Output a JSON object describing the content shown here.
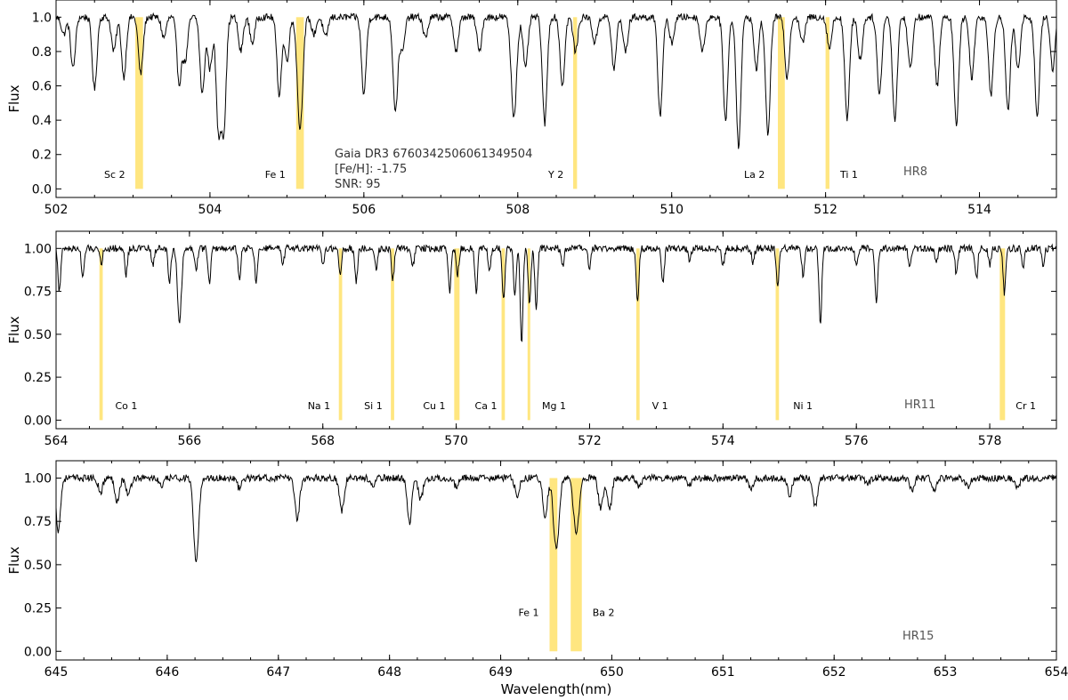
{
  "chart_data": [
    {
      "type": "line",
      "panel_label": "HR8",
      "xlim": [
        502,
        515
      ],
      "ylim": [
        -0.05,
        1.1
      ],
      "xticks": [
        502,
        504,
        506,
        508,
        510,
        512,
        514
      ],
      "yticks": [
        0.0,
        0.2,
        0.4,
        0.6,
        0.8,
        1.0
      ],
      "ytick_labels": [
        "0.0",
        "0.2",
        "0.4",
        "0.6",
        "0.8",
        "1.0"
      ],
      "ylabel": "Flux",
      "xlabel": "",
      "info": [
        "Gaia DR3 6760342506061349504",
        "[Fe/H]: -1.75",
        "SNR: 95"
      ],
      "absorption_lines": [
        {
          "x": 502.1,
          "depth": 0.1,
          "width": 0.03
        },
        {
          "x": 502.22,
          "depth": 0.3,
          "width": 0.03
        },
        {
          "x": 502.5,
          "depth": 0.42,
          "width": 0.03
        },
        {
          "x": 502.75,
          "depth": 0.2,
          "width": 0.03
        },
        {
          "x": 502.88,
          "depth": 0.35,
          "width": 0.03
        },
        {
          "x": 503.1,
          "depth": 0.33,
          "width": 0.03
        },
        {
          "x": 503.4,
          "depth": 0.12,
          "width": 0.03
        },
        {
          "x": 503.6,
          "depth": 0.38,
          "width": 0.03
        },
        {
          "x": 503.68,
          "depth": 0.25,
          "width": 0.03
        },
        {
          "x": 503.9,
          "depth": 0.45,
          "width": 0.03
        },
        {
          "x": 504.0,
          "depth": 0.3,
          "width": 0.03
        },
        {
          "x": 504.11,
          "depth": 0.65,
          "width": 0.03
        },
        {
          "x": 504.18,
          "depth": 0.64,
          "width": 0.03
        },
        {
          "x": 504.4,
          "depth": 0.2,
          "width": 0.03
        },
        {
          "x": 504.55,
          "depth": 0.15,
          "width": 0.03
        },
        {
          "x": 504.9,
          "depth": 0.45,
          "width": 0.03
        },
        {
          "x": 505.0,
          "depth": 0.25,
          "width": 0.03
        },
        {
          "x": 505.17,
          "depth": 0.65,
          "width": 0.035
        },
        {
          "x": 505.35,
          "depth": 0.1,
          "width": 0.03
        },
        {
          "x": 505.5,
          "depth": 0.12,
          "width": 0.03
        },
        {
          "x": 506.0,
          "depth": 0.45,
          "width": 0.03
        },
        {
          "x": 506.41,
          "depth": 0.55,
          "width": 0.03
        },
        {
          "x": 506.5,
          "depth": 0.2,
          "width": 0.03
        },
        {
          "x": 506.8,
          "depth": 0.12,
          "width": 0.03
        },
        {
          "x": 507.2,
          "depth": 0.2,
          "width": 0.03
        },
        {
          "x": 507.5,
          "depth": 0.2,
          "width": 0.03
        },
        {
          "x": 507.95,
          "depth": 0.58,
          "width": 0.035
        },
        {
          "x": 508.1,
          "depth": 0.3,
          "width": 0.03
        },
        {
          "x": 508.35,
          "depth": 0.62,
          "width": 0.03
        },
        {
          "x": 508.58,
          "depth": 0.4,
          "width": 0.03
        },
        {
          "x": 508.75,
          "depth": 0.2,
          "width": 0.03
        },
        {
          "x": 509.0,
          "depth": 0.15,
          "width": 0.03
        },
        {
          "x": 509.25,
          "depth": 0.3,
          "width": 0.03
        },
        {
          "x": 509.4,
          "depth": 0.2,
          "width": 0.03
        },
        {
          "x": 509.85,
          "depth": 0.57,
          "width": 0.03
        },
        {
          "x": 510.0,
          "depth": 0.15,
          "width": 0.03
        },
        {
          "x": 510.4,
          "depth": 0.2,
          "width": 0.03
        },
        {
          "x": 510.7,
          "depth": 0.6,
          "width": 0.03
        },
        {
          "x": 510.87,
          "depth": 0.75,
          "width": 0.03
        },
        {
          "x": 511.1,
          "depth": 0.3,
          "width": 0.03
        },
        {
          "x": 511.25,
          "depth": 0.68,
          "width": 0.03
        },
        {
          "x": 511.5,
          "depth": 0.35,
          "width": 0.03
        },
        {
          "x": 511.7,
          "depth": 0.15,
          "width": 0.03
        },
        {
          "x": 512.05,
          "depth": 0.18,
          "width": 0.03
        },
        {
          "x": 512.28,
          "depth": 0.6,
          "width": 0.03
        },
        {
          "x": 512.45,
          "depth": 0.25,
          "width": 0.03
        },
        {
          "x": 512.7,
          "depth": 0.45,
          "width": 0.03
        },
        {
          "x": 512.9,
          "depth": 0.6,
          "width": 0.03
        },
        {
          "x": 513.1,
          "depth": 0.3,
          "width": 0.03
        },
        {
          "x": 513.45,
          "depth": 0.4,
          "width": 0.03
        },
        {
          "x": 513.7,
          "depth": 0.62,
          "width": 0.03
        },
        {
          "x": 513.9,
          "depth": 0.35,
          "width": 0.03
        },
        {
          "x": 514.15,
          "depth": 0.45,
          "width": 0.03
        },
        {
          "x": 514.37,
          "depth": 0.55,
          "width": 0.03
        },
        {
          "x": 514.5,
          "depth": 0.3,
          "width": 0.03
        },
        {
          "x": 514.75,
          "depth": 0.58,
          "width": 0.03
        },
        {
          "x": 514.95,
          "depth": 0.3,
          "width": 0.03
        }
      ],
      "highlights": [
        {
          "label": "Sc 2",
          "x0": 503.03,
          "x1": 503.13
        },
        {
          "label": "Fe 1",
          "x0": 505.12,
          "x1": 505.22
        },
        {
          "label": "Y 2",
          "x0": 508.72,
          "x1": 508.77
        },
        {
          "label": "La 2",
          "x0": 511.38,
          "x1": 511.47
        },
        {
          "label": "Ti 1",
          "x0": 512.0,
          "x1": 512.05
        }
      ]
    },
    {
      "type": "line",
      "panel_label": "HR11",
      "xlim": [
        564,
        579
      ],
      "ylim": [
        -0.05,
        1.1
      ],
      "xticks": [
        564,
        566,
        568,
        570,
        572,
        574,
        576,
        578
      ],
      "yticks": [
        0.0,
        0.25,
        0.5,
        0.75,
        1.0
      ],
      "ytick_labels": [
        "0.00",
        "0.25",
        "0.50",
        "0.75",
        "1.00"
      ],
      "ylabel": "Flux",
      "xlabel": "",
      "absorption_lines": [
        {
          "x": 564.05,
          "depth": 0.25,
          "width": 0.02
        },
        {
          "x": 564.4,
          "depth": 0.18,
          "width": 0.02
        },
        {
          "x": 564.68,
          "depth": 0.08,
          "width": 0.02
        },
        {
          "x": 565.05,
          "depth": 0.15,
          "width": 0.02
        },
        {
          "x": 565.45,
          "depth": 0.1,
          "width": 0.02
        },
        {
          "x": 565.7,
          "depth": 0.2,
          "width": 0.02
        },
        {
          "x": 565.85,
          "depth": 0.42,
          "width": 0.03
        },
        {
          "x": 566.1,
          "depth": 0.12,
          "width": 0.02
        },
        {
          "x": 566.3,
          "depth": 0.2,
          "width": 0.02
        },
        {
          "x": 566.75,
          "depth": 0.18,
          "width": 0.02
        },
        {
          "x": 567.0,
          "depth": 0.2,
          "width": 0.02
        },
        {
          "x": 567.4,
          "depth": 0.1,
          "width": 0.02
        },
        {
          "x": 568.0,
          "depth": 0.1,
          "width": 0.02
        },
        {
          "x": 568.26,
          "depth": 0.15,
          "width": 0.02
        },
        {
          "x": 568.5,
          "depth": 0.2,
          "width": 0.02
        },
        {
          "x": 568.8,
          "depth": 0.12,
          "width": 0.02
        },
        {
          "x": 569.05,
          "depth": 0.18,
          "width": 0.02
        },
        {
          "x": 569.35,
          "depth": 0.1,
          "width": 0.02
        },
        {
          "x": 569.9,
          "depth": 0.25,
          "width": 0.02
        },
        {
          "x": 570.02,
          "depth": 0.15,
          "width": 0.02
        },
        {
          "x": 570.3,
          "depth": 0.25,
          "width": 0.02
        },
        {
          "x": 570.5,
          "depth": 0.12,
          "width": 0.02
        },
        {
          "x": 570.71,
          "depth": 0.3,
          "width": 0.02
        },
        {
          "x": 570.88,
          "depth": 0.28,
          "width": 0.02
        },
        {
          "x": 570.98,
          "depth": 0.55,
          "width": 0.02
        },
        {
          "x": 571.1,
          "depth": 0.33,
          "width": 0.02
        },
        {
          "x": 571.2,
          "depth": 0.35,
          "width": 0.02
        },
        {
          "x": 571.6,
          "depth": 0.1,
          "width": 0.02
        },
        {
          "x": 572.0,
          "depth": 0.12,
          "width": 0.02
        },
        {
          "x": 572.72,
          "depth": 0.3,
          "width": 0.02
        },
        {
          "x": 573.1,
          "depth": 0.2,
          "width": 0.02
        },
        {
          "x": 573.5,
          "depth": 0.08,
          "width": 0.02
        },
        {
          "x": 574.0,
          "depth": 0.1,
          "width": 0.02
        },
        {
          "x": 574.45,
          "depth": 0.08,
          "width": 0.02
        },
        {
          "x": 574.82,
          "depth": 0.22,
          "width": 0.02
        },
        {
          "x": 575.2,
          "depth": 0.15,
          "width": 0.02
        },
        {
          "x": 575.46,
          "depth": 0.45,
          "width": 0.02
        },
        {
          "x": 576.0,
          "depth": 0.1,
          "width": 0.02
        },
        {
          "x": 576.3,
          "depth": 0.33,
          "width": 0.02
        },
        {
          "x": 576.8,
          "depth": 0.12,
          "width": 0.02
        },
        {
          "x": 577.2,
          "depth": 0.08,
          "width": 0.02
        },
        {
          "x": 577.5,
          "depth": 0.15,
          "width": 0.02
        },
        {
          "x": 577.8,
          "depth": 0.18,
          "width": 0.02
        },
        {
          "x": 578.0,
          "depth": 0.1,
          "width": 0.02
        },
        {
          "x": 578.22,
          "depth": 0.26,
          "width": 0.02
        },
        {
          "x": 578.5,
          "depth": 0.1,
          "width": 0.02
        },
        {
          "x": 578.8,
          "depth": 0.1,
          "width": 0.02
        }
      ],
      "highlights": [
        {
          "label": "Co 1",
          "x0": 564.65,
          "x1": 564.7
        },
        {
          "label": "Na 1",
          "x0": 568.24,
          "x1": 568.29
        },
        {
          "label": "Si 1",
          "x0": 569.02,
          "x1": 569.07
        },
        {
          "label": "Cu 1",
          "x0": 569.97,
          "x1": 570.05
        },
        {
          "label": "Ca 1",
          "x0": 570.68,
          "x1": 570.73
        },
        {
          "label": "Mg 1",
          "x0": 571.07,
          "x1": 571.1
        },
        {
          "label": "V 1",
          "x0": 572.7,
          "x1": 572.75
        },
        {
          "label": "Ni 1",
          "x0": 574.79,
          "x1": 574.84
        },
        {
          "label": "Cr 1",
          "x0": 578.15,
          "x1": 578.23
        }
      ]
    },
    {
      "type": "line",
      "panel_label": "HR15",
      "xlim": [
        645,
        654
      ],
      "ylim": [
        -0.05,
        1.1
      ],
      "xticks": [
        645,
        646,
        647,
        648,
        649,
        650,
        651,
        652,
        653,
        654
      ],
      "yticks": [
        0.0,
        0.25,
        0.5,
        0.75,
        1.0
      ],
      "ytick_labels": [
        "0.00",
        "0.25",
        "0.50",
        "0.75",
        "1.00"
      ],
      "ylabel": "Flux",
      "xlabel": "Wavelength(nm)",
      "absorption_lines": [
        {
          "x": 645.02,
          "depth": 0.3,
          "width": 0.02
        },
        {
          "x": 645.4,
          "depth": 0.08,
          "width": 0.02
        },
        {
          "x": 645.55,
          "depth": 0.13,
          "width": 0.02
        },
        {
          "x": 645.65,
          "depth": 0.1,
          "width": 0.02
        },
        {
          "x": 645.95,
          "depth": 0.05,
          "width": 0.02
        },
        {
          "x": 646.26,
          "depth": 0.5,
          "width": 0.022
        },
        {
          "x": 646.65,
          "depth": 0.06,
          "width": 0.02
        },
        {
          "x": 647.17,
          "depth": 0.24,
          "width": 0.02
        },
        {
          "x": 647.57,
          "depth": 0.19,
          "width": 0.02
        },
        {
          "x": 647.85,
          "depth": 0.05,
          "width": 0.02
        },
        {
          "x": 648.18,
          "depth": 0.26,
          "width": 0.02
        },
        {
          "x": 648.28,
          "depth": 0.12,
          "width": 0.02
        },
        {
          "x": 648.6,
          "depth": 0.05,
          "width": 0.02
        },
        {
          "x": 649.15,
          "depth": 0.1,
          "width": 0.02
        },
        {
          "x": 649.4,
          "depth": 0.22,
          "width": 0.02
        },
        {
          "x": 649.5,
          "depth": 0.41,
          "width": 0.025
        },
        {
          "x": 649.68,
          "depth": 0.32,
          "width": 0.025
        },
        {
          "x": 649.9,
          "depth": 0.18,
          "width": 0.02
        },
        {
          "x": 649.98,
          "depth": 0.18,
          "width": 0.02
        },
        {
          "x": 650.25,
          "depth": 0.05,
          "width": 0.02
        },
        {
          "x": 650.7,
          "depth": 0.04,
          "width": 0.02
        },
        {
          "x": 651.25,
          "depth": 0.06,
          "width": 0.02
        },
        {
          "x": 651.6,
          "depth": 0.1,
          "width": 0.02
        },
        {
          "x": 651.83,
          "depth": 0.17,
          "width": 0.02
        },
        {
          "x": 652.3,
          "depth": 0.04,
          "width": 0.02
        },
        {
          "x": 652.7,
          "depth": 0.07,
          "width": 0.02
        },
        {
          "x": 652.9,
          "depth": 0.07,
          "width": 0.02
        },
        {
          "x": 653.2,
          "depth": 0.05,
          "width": 0.02
        },
        {
          "x": 653.65,
          "depth": 0.05,
          "width": 0.02
        }
      ],
      "highlights": [
        {
          "label": "Fe 1",
          "x0": 649.44,
          "x1": 649.51
        },
        {
          "label": "Ba 2",
          "x0": 649.63,
          "x1": 649.73
        }
      ]
    }
  ],
  "colors": {
    "line": "#000000",
    "highlight": "#ffe680",
    "frame": "#000000",
    "panel_name": "#555555"
  }
}
